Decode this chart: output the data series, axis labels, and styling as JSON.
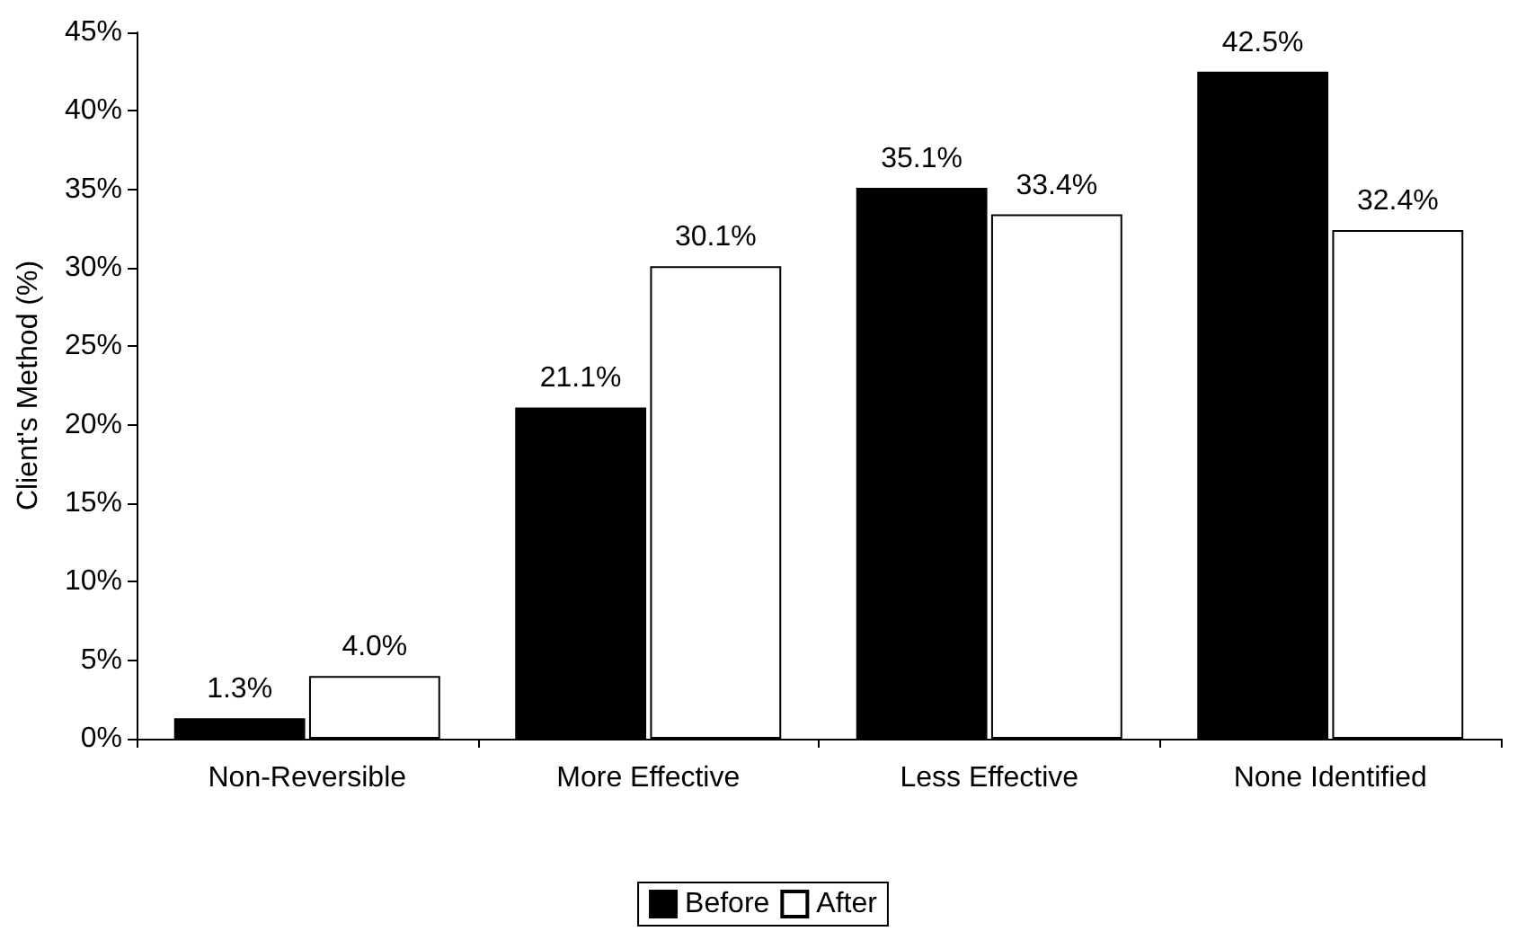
{
  "chart_data": {
    "type": "bar",
    "ylabel": "Client's Method (%)",
    "categories": [
      "Non-Reversible",
      "More Effective",
      "Less Effective",
      "None Identified"
    ],
    "series": [
      {
        "name": "Before",
        "color": "#000000",
        "values": [
          1.3,
          21.1,
          35.1,
          42.5
        ],
        "value_labels": [
          "1.3%",
          "21.1%",
          "35.1%",
          "42.5%"
        ]
      },
      {
        "name": "After",
        "color": "#ffffff",
        "values": [
          4.0,
          30.1,
          33.4,
          32.4
        ],
        "value_labels": [
          "4.0%",
          "30.1%",
          "33.4%",
          "32.4%"
        ]
      }
    ],
    "ylim": [
      0,
      45
    ],
    "yticks": [
      {
        "value": 0,
        "label": "0%"
      },
      {
        "value": 5,
        "label": "5%"
      },
      {
        "value": 10,
        "label": "10%"
      },
      {
        "value": 15,
        "label": "15%"
      },
      {
        "value": 20,
        "label": "20%"
      },
      {
        "value": 25,
        "label": "25%"
      },
      {
        "value": 30,
        "label": "30%"
      },
      {
        "value": 35,
        "label": "35%"
      },
      {
        "value": 40,
        "label": "40%"
      },
      {
        "value": 45,
        "label": "45%"
      }
    ],
    "grid": false,
    "legend": "bottom"
  }
}
